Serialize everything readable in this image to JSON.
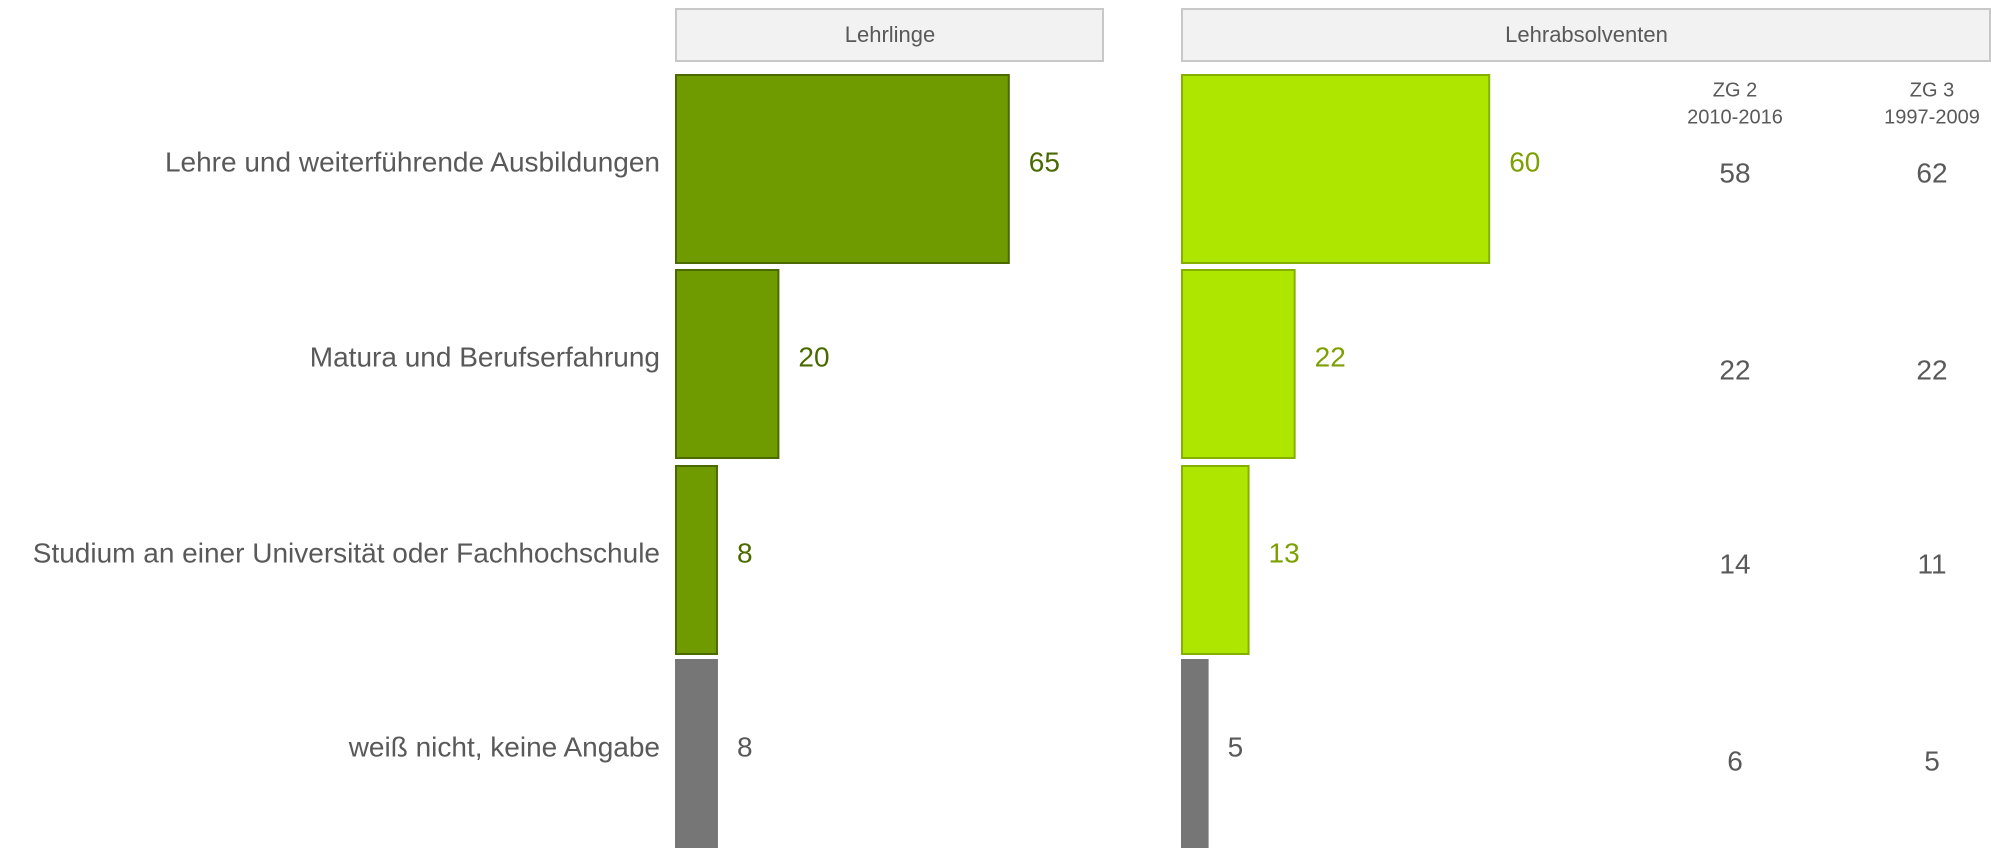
{
  "chart_data": {
    "type": "bar",
    "categories": [
      "Lehre und weiterführende Ausbildungen",
      "Matura und Berufserfahrung",
      "Studium an einer Universität oder Fachhochschule",
      "weiß nicht, keine Angabe"
    ],
    "series": [
      {
        "name": "Lehrlinge",
        "colors": [
          "#6f9a00",
          "#6f9a00",
          "#6f9a00",
          "#767676"
        ],
        "values": [
          65,
          20,
          8,
          8
        ]
      },
      {
        "name": "Lehrabsolventen",
        "colors": [
          "#aee600",
          "#aee600",
          "#aee600",
          "#767676"
        ],
        "values": [
          60,
          22,
          13,
          5
        ]
      }
    ]
  },
  "table": {
    "columns": [
      {
        "name": "ZG 2",
        "period": "2010-2016",
        "values": [
          58,
          22,
          14,
          6
        ]
      },
      {
        "name": "ZG 3",
        "period": "1997-2009",
        "values": [
          62,
          22,
          11,
          5
        ]
      }
    ]
  }
}
